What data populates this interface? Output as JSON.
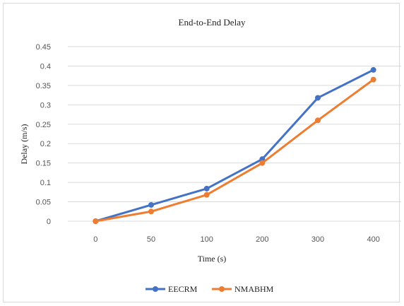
{
  "chart_data": {
    "type": "line",
    "title": "End-to-End Delay",
    "xlabel": "Time (s)",
    "ylabel": "Delay (m/s)",
    "categories": [
      "0",
      "50",
      "100",
      "200",
      "300",
      "400"
    ],
    "yticks": [
      "0",
      "0.05",
      "0.1",
      "0.15",
      "0.2",
      "0.25",
      "0.3",
      "0.35",
      "0.4",
      "0.45"
    ],
    "ylim": [
      0,
      0.45
    ],
    "grid": true,
    "legend_position": "bottom",
    "series": [
      {
        "name": "EECRM",
        "color": "#4472c4",
        "values": [
          0.0,
          0.042,
          0.084,
          0.16,
          0.318,
          0.39
        ]
      },
      {
        "name": "NMABHM",
        "color": "#ed7d31",
        "values": [
          0.0,
          0.025,
          0.068,
          0.15,
          0.26,
          0.365
        ]
      }
    ]
  }
}
